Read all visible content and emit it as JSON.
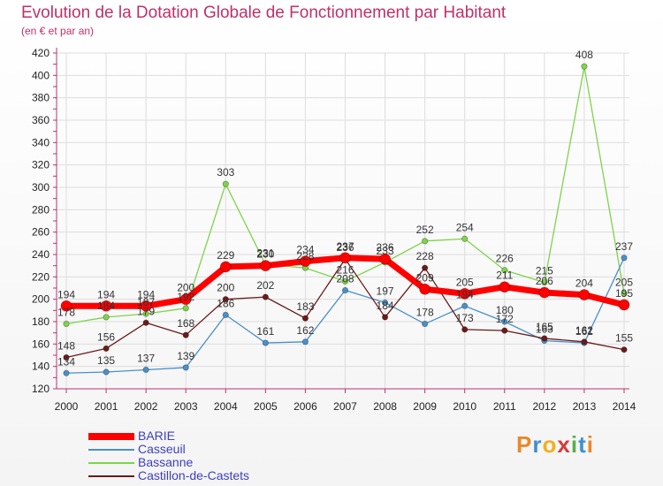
{
  "title": "Evolution de la Dotation Globale de Fonctionnement par Habitant",
  "subtitle": "(en € et par an)",
  "logo": {
    "letters": [
      "P",
      "r",
      "o",
      "x",
      "i",
      "t",
      "i"
    ],
    "colors": [
      "#e8892a",
      "#3c8fd4",
      "#f0b020",
      "#d63a3a",
      "#58b04a",
      "#3c8fd4",
      "#e8892a"
    ]
  },
  "chart_data": {
    "type": "line",
    "title": "Evolution de la Dotation Globale de Fonctionnement par Habitant",
    "subtitle": "(en € et par an)",
    "x": [
      "2000",
      "2001",
      "2002",
      "2003",
      "2004",
      "2005",
      "2006",
      "2007",
      "2008",
      "2009",
      "2010",
      "2011",
      "2012",
      "2013",
      "2014"
    ],
    "ylim": [
      120,
      420
    ],
    "yticks": [
      120,
      140,
      160,
      180,
      200,
      220,
      240,
      260,
      280,
      300,
      320,
      340,
      360,
      380,
      400,
      420
    ],
    "grid": true,
    "legend": "bottom-left",
    "series": [
      {
        "name": "BARIE",
        "color": "#ff0000",
        "width": 7,
        "values": [
          194,
          194,
          194,
          200,
          229,
          230,
          234,
          237,
          236,
          209,
          205,
          211,
          206,
          204,
          195
        ]
      },
      {
        "name": "Casseuil",
        "color": "#4a90c8",
        "width": 1.3,
        "values": [
          134,
          135,
          137,
          139,
          186,
          161,
          162,
          208,
          197,
          178,
          194,
          180,
          163,
          161,
          237
        ]
      },
      {
        "name": "Bassanne",
        "color": "#7ed44a",
        "width": 1.3,
        "values": [
          178,
          184,
          187,
          192,
          303,
          231,
          228,
          216,
          233,
          252,
          254,
          226,
          215,
          408,
          205
        ]
      },
      {
        "name": "Castillon-de-Castets",
        "color": "#6b1a1a",
        "width": 1.3,
        "values": [
          148,
          156,
          179,
          168,
          200,
          202,
          183,
          236,
          184,
          228,
          173,
          172,
          165,
          162,
          155
        ]
      }
    ]
  }
}
